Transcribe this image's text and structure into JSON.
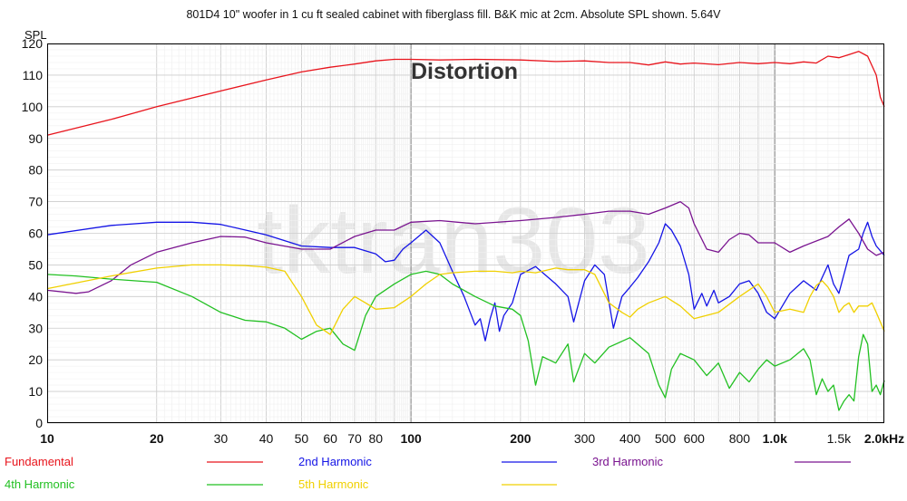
{
  "chart_data": {
    "type": "line",
    "title": "801D4 10\" woofer in 1 cu ft sealed cabinet with fiberglass fill. B&K mic at 2cm. Absolute SPL shown. 5.64V",
    "ylabel": "SPL",
    "xlabel": "",
    "x_scale": "log",
    "xlim": [
      10,
      2000
    ],
    "ylim": [
      0,
      120
    ],
    "grid": true,
    "legend_placement": "bottom",
    "annotation": "Distortion",
    "watermark": "tktran303",
    "yticks": [
      0,
      10,
      20,
      30,
      40,
      50,
      60,
      70,
      80,
      90,
      100,
      110,
      120
    ],
    "xticks": [
      {
        "value": 10,
        "label": "10",
        "bold": true
      },
      {
        "value": 20,
        "label": "20",
        "bold": true
      },
      {
        "value": 30,
        "label": "30",
        "bold": false
      },
      {
        "value": 40,
        "label": "40",
        "bold": false
      },
      {
        "value": 50,
        "label": "50",
        "bold": false
      },
      {
        "value": 60,
        "label": "60",
        "bold": false
      },
      {
        "value": 70,
        "label": "70",
        "bold": false
      },
      {
        "value": 80,
        "label": "80",
        "bold": false
      },
      {
        "value": 100,
        "label": "100",
        "bold": true
      },
      {
        "value": 200,
        "label": "200",
        "bold": true
      },
      {
        "value": 300,
        "label": "300",
        "bold": false
      },
      {
        "value": 400,
        "label": "400",
        "bold": false
      },
      {
        "value": 500,
        "label": "500",
        "bold": false
      },
      {
        "value": 600,
        "label": "600",
        "bold": false
      },
      {
        "value": 800,
        "label": "800",
        "bold": false
      },
      {
        "value": 1000,
        "label": "1.0k",
        "bold": true
      },
      {
        "value": 1500,
        "label": "1.5k",
        "bold": false
      },
      {
        "value": 2000,
        "label": "2.0kHz",
        "bold": true
      }
    ],
    "series": [
      {
        "name": "Fundamental",
        "color": "#e8141c",
        "points": [
          [
            10,
            91
          ],
          [
            15,
            96
          ],
          [
            20,
            100
          ],
          [
            30,
            105
          ],
          [
            40,
            108.5
          ],
          [
            50,
            111
          ],
          [
            60,
            112.5
          ],
          [
            70,
            113.5
          ],
          [
            80,
            114.5
          ],
          [
            90,
            115
          ],
          [
            100,
            115
          ],
          [
            120,
            114.8
          ],
          [
            150,
            115
          ],
          [
            200,
            114.8
          ],
          [
            250,
            114.3
          ],
          [
            300,
            114.5
          ],
          [
            350,
            114
          ],
          [
            400,
            114
          ],
          [
            450,
            113.2
          ],
          [
            500,
            114.2
          ],
          [
            550,
            113.5
          ],
          [
            600,
            113.8
          ],
          [
            700,
            113.3
          ],
          [
            800,
            114
          ],
          [
            900,
            113.6
          ],
          [
            1000,
            114
          ],
          [
            1100,
            113.6
          ],
          [
            1200,
            114.2
          ],
          [
            1300,
            113.8
          ],
          [
            1400,
            116
          ],
          [
            1500,
            115.5
          ],
          [
            1600,
            116.5
          ],
          [
            1700,
            117.5
          ],
          [
            1800,
            116
          ],
          [
            1900,
            110
          ],
          [
            1950,
            103
          ],
          [
            2000,
            100
          ]
        ]
      },
      {
        "name": "2nd Harmonic",
        "color": "#1414e6",
        "points": [
          [
            10,
            59.5
          ],
          [
            15,
            62.5
          ],
          [
            20,
            63.5
          ],
          [
            25,
            63.5
          ],
          [
            30,
            62.8
          ],
          [
            40,
            59.5
          ],
          [
            50,
            56
          ],
          [
            60,
            55.5
          ],
          [
            70,
            55.5
          ],
          [
            80,
            53.5
          ],
          [
            85,
            51
          ],
          [
            90,
            51.5
          ],
          [
            95,
            55
          ],
          [
            100,
            57
          ],
          [
            110,
            61
          ],
          [
            120,
            57
          ],
          [
            130,
            48
          ],
          [
            140,
            40
          ],
          [
            150,
            31
          ],
          [
            155,
            33
          ],
          [
            160,
            26
          ],
          [
            165,
            33
          ],
          [
            170,
            38
          ],
          [
            175,
            29
          ],
          [
            180,
            34
          ],
          [
            190,
            38
          ],
          [
            200,
            47
          ],
          [
            220,
            49.5
          ],
          [
            250,
            44
          ],
          [
            270,
            40
          ],
          [
            280,
            32
          ],
          [
            300,
            45
          ],
          [
            320,
            50
          ],
          [
            340,
            47
          ],
          [
            360,
            30
          ],
          [
            380,
            40
          ],
          [
            400,
            43
          ],
          [
            420,
            46
          ],
          [
            450,
            51
          ],
          [
            480,
            57
          ],
          [
            500,
            63
          ],
          [
            520,
            61
          ],
          [
            550,
            56
          ],
          [
            580,
            47
          ],
          [
            600,
            36
          ],
          [
            630,
            41
          ],
          [
            650,
            37
          ],
          [
            680,
            42
          ],
          [
            700,
            38
          ],
          [
            750,
            40
          ],
          [
            800,
            44
          ],
          [
            850,
            45
          ],
          [
            900,
            41
          ],
          [
            950,
            35
          ],
          [
            1000,
            33
          ],
          [
            1100,
            41
          ],
          [
            1200,
            45
          ],
          [
            1300,
            42
          ],
          [
            1400,
            50
          ],
          [
            1450,
            44
          ],
          [
            1500,
            41
          ],
          [
            1600,
            53
          ],
          [
            1700,
            55
          ],
          [
            1750,
            60
          ],
          [
            1800,
            63.5
          ],
          [
            1850,
            59
          ],
          [
            1900,
            56
          ],
          [
            2000,
            53
          ]
        ]
      },
      {
        "name": "3rd Harmonic",
        "color": "#7a1490",
        "points": [
          [
            10,
            42
          ],
          [
            12,
            41
          ],
          [
            13,
            41.5
          ],
          [
            15,
            45
          ],
          [
            17,
            50
          ],
          [
            20,
            54
          ],
          [
            25,
            57
          ],
          [
            30,
            59
          ],
          [
            35,
            58.8
          ],
          [
            40,
            57
          ],
          [
            50,
            55
          ],
          [
            60,
            55
          ],
          [
            70,
            59
          ],
          [
            80,
            61
          ],
          [
            90,
            61
          ],
          [
            100,
            63.5
          ],
          [
            120,
            64
          ],
          [
            150,
            63
          ],
          [
            200,
            64
          ],
          [
            250,
            65
          ],
          [
            300,
            66
          ],
          [
            350,
            67
          ],
          [
            400,
            67
          ],
          [
            450,
            66
          ],
          [
            500,
            68
          ],
          [
            550,
            70
          ],
          [
            580,
            68
          ],
          [
            600,
            63
          ],
          [
            650,
            55
          ],
          [
            700,
            54
          ],
          [
            750,
            58
          ],
          [
            800,
            60
          ],
          [
            850,
            59.5
          ],
          [
            900,
            57
          ],
          [
            1000,
            57
          ],
          [
            1100,
            54
          ],
          [
            1200,
            56
          ],
          [
            1400,
            59
          ],
          [
            1500,
            62
          ],
          [
            1600,
            64.5
          ],
          [
            1700,
            60
          ],
          [
            1800,
            55
          ],
          [
            1900,
            53
          ],
          [
            2000,
            54
          ]
        ]
      },
      {
        "name": "4th Harmonic",
        "color": "#22c022",
        "points": [
          [
            10,
            47
          ],
          [
            12,
            46.5
          ],
          [
            15,
            45.5
          ],
          [
            20,
            44.5
          ],
          [
            25,
            40
          ],
          [
            30,
            35
          ],
          [
            35,
            32.5
          ],
          [
            40,
            32
          ],
          [
            45,
            30
          ],
          [
            50,
            26.5
          ],
          [
            55,
            29
          ],
          [
            60,
            30
          ],
          [
            65,
            25
          ],
          [
            70,
            23
          ],
          [
            75,
            34
          ],
          [
            80,
            40
          ],
          [
            90,
            44
          ],
          [
            100,
            47
          ],
          [
            110,
            48
          ],
          [
            120,
            47
          ],
          [
            130,
            44
          ],
          [
            150,
            40
          ],
          [
            170,
            37
          ],
          [
            190,
            36
          ],
          [
            200,
            34
          ],
          [
            210,
            26
          ],
          [
            220,
            12
          ],
          [
            230,
            21
          ],
          [
            250,
            19
          ],
          [
            270,
            25
          ],
          [
            280,
            13
          ],
          [
            300,
            22
          ],
          [
            320,
            19
          ],
          [
            350,
            24
          ],
          [
            400,
            27
          ],
          [
            450,
            22
          ],
          [
            480,
            12
          ],
          [
            500,
            8
          ],
          [
            520,
            17
          ],
          [
            550,
            22
          ],
          [
            600,
            20
          ],
          [
            650,
            15
          ],
          [
            700,
            19
          ],
          [
            750,
            11
          ],
          [
            800,
            16
          ],
          [
            850,
            13
          ],
          [
            900,
            17
          ],
          [
            950,
            20
          ],
          [
            1000,
            18
          ],
          [
            1100,
            20
          ],
          [
            1200,
            23.5
          ],
          [
            1250,
            20
          ],
          [
            1300,
            9
          ],
          [
            1350,
            14
          ],
          [
            1400,
            10
          ],
          [
            1450,
            12
          ],
          [
            1500,
            4
          ],
          [
            1550,
            7
          ],
          [
            1600,
            9
          ],
          [
            1650,
            7
          ],
          [
            1700,
            21
          ],
          [
            1750,
            28
          ],
          [
            1800,
            25
          ],
          [
            1850,
            10
          ],
          [
            1900,
            12
          ],
          [
            1950,
            9
          ],
          [
            2000,
            13.5
          ]
        ]
      },
      {
        "name": "5th Harmonic",
        "color": "#f0d000",
        "points": [
          [
            10,
            42.5
          ],
          [
            15,
            46.5
          ],
          [
            20,
            49
          ],
          [
            25,
            50
          ],
          [
            30,
            50
          ],
          [
            35,
            49.8
          ],
          [
            40,
            49.3
          ],
          [
            45,
            48
          ],
          [
            50,
            40
          ],
          [
            55,
            31
          ],
          [
            60,
            28
          ],
          [
            65,
            36
          ],
          [
            70,
            40
          ],
          [
            75,
            38
          ],
          [
            80,
            36
          ],
          [
            90,
            36.5
          ],
          [
            100,
            40
          ],
          [
            110,
            44
          ],
          [
            120,
            47
          ],
          [
            130,
            47.5
          ],
          [
            150,
            48
          ],
          [
            170,
            48
          ],
          [
            190,
            47.5
          ],
          [
            200,
            48
          ],
          [
            220,
            47.5
          ],
          [
            250,
            49
          ],
          [
            270,
            48.5
          ],
          [
            300,
            48.5
          ],
          [
            320,
            47
          ],
          [
            350,
            38
          ],
          [
            380,
            35
          ],
          [
            400,
            33.5
          ],
          [
            420,
            36
          ],
          [
            450,
            38
          ],
          [
            500,
            40
          ],
          [
            550,
            37
          ],
          [
            600,
            33
          ],
          [
            700,
            35
          ],
          [
            800,
            40
          ],
          [
            900,
            44
          ],
          [
            950,
            40
          ],
          [
            1000,
            35
          ],
          [
            1100,
            36
          ],
          [
            1200,
            35
          ],
          [
            1250,
            40
          ],
          [
            1300,
            43.5
          ],
          [
            1350,
            45
          ],
          [
            1400,
            43
          ],
          [
            1450,
            40
          ],
          [
            1500,
            35
          ],
          [
            1550,
            37
          ],
          [
            1600,
            38
          ],
          [
            1650,
            35
          ],
          [
            1700,
            37
          ],
          [
            1800,
            37
          ],
          [
            1850,
            38
          ],
          [
            1900,
            35
          ],
          [
            2000,
            29
          ]
        ]
      }
    ]
  }
}
